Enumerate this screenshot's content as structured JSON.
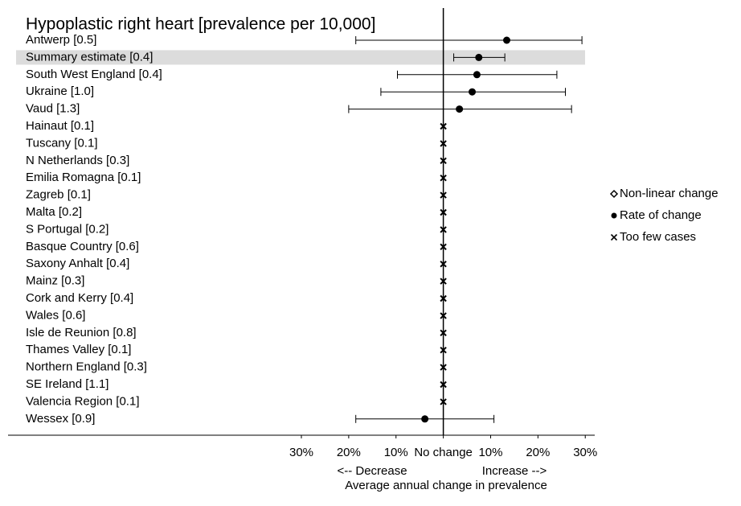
{
  "chart_data": {
    "type": "forest",
    "title": "Hypoplastic right heart [prevalence per 10,000]",
    "categories": [
      "Antwerp [0.5]",
      "Summary estimate [0.4]",
      "South West England [0.4]",
      "Ukraine [1.0]",
      "Vaud [1.3]",
      "Hainaut [0.1]",
      "Tuscany [0.1]",
      "N Netherlands [0.3]",
      "Emilia Romagna [0.1]",
      "Zagreb [0.1]",
      "Malta [0.2]",
      "S Portugal [0.2]",
      "Basque Country [0.6]",
      "Saxony Anhalt [0.4]",
      "Mainz [0.3]",
      "Cork and Kerry [0.4]",
      "Wales [0.6]",
      "Isle de Reunion [0.8]",
      "Thames Valley [0.1]",
      "Northern England [0.3]",
      "SE Ireland [1.1]",
      "Valencia Region [0.1]",
      "Wessex [0.9]"
    ],
    "markers": [
      "Rate of change",
      "Rate of change",
      "Rate of change",
      "Rate of change",
      "Rate of change",
      "Too few cases",
      "Too few cases",
      "Too few cases",
      "Too few cases",
      "Too few cases",
      "Too few cases",
      "Too few cases",
      "Too few cases",
      "Too few cases",
      "Too few cases",
      "Too few cases",
      "Too few cases",
      "Too few cases",
      "Too few cases",
      "Too few cases",
      "Too few cases",
      "Too few cases",
      "Rate of change"
    ],
    "values": [
      13.4,
      7.5,
      7.1,
      6.1,
      3.4,
      null,
      null,
      null,
      null,
      null,
      null,
      null,
      null,
      null,
      null,
      null,
      null,
      null,
      null,
      null,
      null,
      null,
      -3.9
    ],
    "lower": [
      -18.5,
      2.2,
      -9.7,
      -13.2,
      -20,
      null,
      null,
      null,
      null,
      null,
      null,
      null,
      null,
      null,
      null,
      null,
      null,
      null,
      null,
      null,
      null,
      null,
      -18.5
    ],
    "upper": [
      29.3,
      13,
      24,
      25.8,
      27.1,
      null,
      null,
      null,
      null,
      null,
      null,
      null,
      null,
      null,
      null,
      null,
      null,
      null,
      null,
      null,
      null,
      null,
      10.7
    ],
    "highlight": 1,
    "xlim": [
      -92,
      32
    ],
    "xticks": [
      {
        "value": -30,
        "label": "30%"
      },
      {
        "value": -20,
        "label": "20%"
      },
      {
        "value": -10,
        "label": "10%"
      },
      {
        "value": 0,
        "label": "No change"
      },
      {
        "value": 10,
        "label": "10%"
      },
      {
        "value": 20,
        "label": "20%"
      },
      {
        "value": 30,
        "label": "30%"
      }
    ],
    "decrease_label": "<-- Decrease",
    "increase_label": "Increase -->",
    "xlabel": "Average annual change in prevalence",
    "legend": [
      "Non-linear change",
      "Rate of change",
      "Too few cases"
    ]
  }
}
